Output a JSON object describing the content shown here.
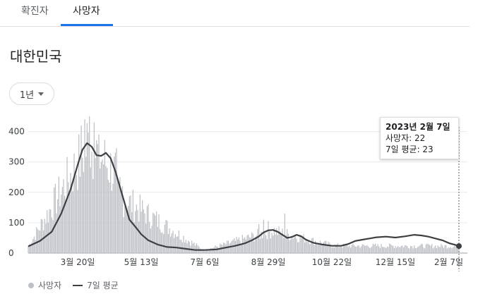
{
  "tabs": [
    {
      "label": "확진자",
      "active": false
    },
    {
      "label": "사망자",
      "active": true
    }
  ],
  "region": "대한민국",
  "range_select": {
    "value": "1년"
  },
  "tooltip": {
    "date": "2023년 2월 7일",
    "deaths": "사망자: 22",
    "avg": "7일 평균: 23"
  },
  "colors": {
    "bars": "#bdc1c6",
    "average_line": "#3c4043",
    "tab_accent": "#1a73e8"
  },
  "chart_data": {
    "type": "bar",
    "title": "",
    "xlabel": "",
    "ylabel": "",
    "ylim": [
      0,
      450
    ],
    "y_ticks": [
      0,
      100,
      200,
      300,
      400
    ],
    "x_tick_labels": [
      "3월 20일",
      "5월 13일",
      "7월 6일",
      "8월 29일",
      "10월 22일",
      "12월 15일",
      "2월 7일"
    ],
    "x_tick_day_index": [
      42,
      96,
      150,
      204,
      258,
      312,
      366
    ],
    "legend": [
      "사망자",
      "7일 평균"
    ],
    "legend_position": "bottom-left",
    "grid": true,
    "series": [
      {
        "name": "7일 평균",
        "kind": "line",
        "points": [
          [
            0,
            22
          ],
          [
            10,
            40
          ],
          [
            20,
            70
          ],
          [
            28,
            130
          ],
          [
            36,
            210
          ],
          [
            42,
            290
          ],
          [
            46,
            340
          ],
          [
            50,
            362
          ],
          [
            54,
            350
          ],
          [
            58,
            322
          ],
          [
            62,
            320
          ],
          [
            66,
            330
          ],
          [
            70,
            312
          ],
          [
            74,
            270
          ],
          [
            80,
            190
          ],
          [
            86,
            110
          ],
          [
            92,
            82
          ],
          [
            96,
            62
          ],
          [
            102,
            42
          ],
          [
            110,
            28
          ],
          [
            118,
            20
          ],
          [
            126,
            18
          ],
          [
            134,
            14
          ],
          [
            142,
            10
          ],
          [
            150,
            10
          ],
          [
            160,
            12
          ],
          [
            168,
            18
          ],
          [
            176,
            24
          ],
          [
            184,
            32
          ],
          [
            190,
            42
          ],
          [
            196,
            55
          ],
          [
            200,
            68
          ],
          [
            204,
            75
          ],
          [
            208,
            76
          ],
          [
            212,
            70
          ],
          [
            216,
            60
          ],
          [
            220,
            50
          ],
          [
            224,
            53
          ],
          [
            228,
            60
          ],
          [
            232,
            55
          ],
          [
            236,
            44
          ],
          [
            242,
            34
          ],
          [
            250,
            28
          ],
          [
            258,
            24
          ],
          [
            266,
            24
          ],
          [
            272,
            30
          ],
          [
            278,
            40
          ],
          [
            284,
            44
          ],
          [
            290,
            48
          ],
          [
            296,
            52
          ],
          [
            304,
            54
          ],
          [
            312,
            51
          ],
          [
            320,
            55
          ],
          [
            328,
            60
          ],
          [
            334,
            58
          ],
          [
            340,
            54
          ],
          [
            346,
            48
          ],
          [
            352,
            42
          ],
          [
            358,
            32
          ],
          [
            362,
            28
          ],
          [
            366,
            23
          ]
        ]
      },
      {
        "name": "사망자",
        "kind": "bars",
        "daily_values_by_segment": [
          {
            "days": [
              0,
              49
            ],
            "base": [
              22,
              340
            ],
            "peak_spikes": {
              "45": 420,
              "48": 440
            }
          },
          {
            "days": [
              50,
              75
            ],
            "base": [
              362,
              260
            ],
            "peak_spikes": {
              "52": 450,
              "56": 430,
              "60": 390
            }
          },
          {
            "days": [
              76,
              149
            ],
            "base": [
              190,
              10
            ],
            "peak_spikes": {
              "78": 250,
              "80": 220
            }
          },
          {
            "days": [
              150,
              210
            ],
            "base": [
              10,
              76
            ],
            "peak_spikes": {
              "196": 95,
              "200": 110,
              "204": 105
            }
          },
          {
            "days": [
              211,
              260
            ],
            "base": [
              70,
              24
            ],
            "peak_spikes": {
              "218": 130
            }
          },
          {
            "days": [
              261,
              366
            ],
            "base": [
              24,
              23
            ],
            "peak_spikes": {}
          }
        ],
        "max_value": 452,
        "last_value": 22
      }
    ]
  }
}
